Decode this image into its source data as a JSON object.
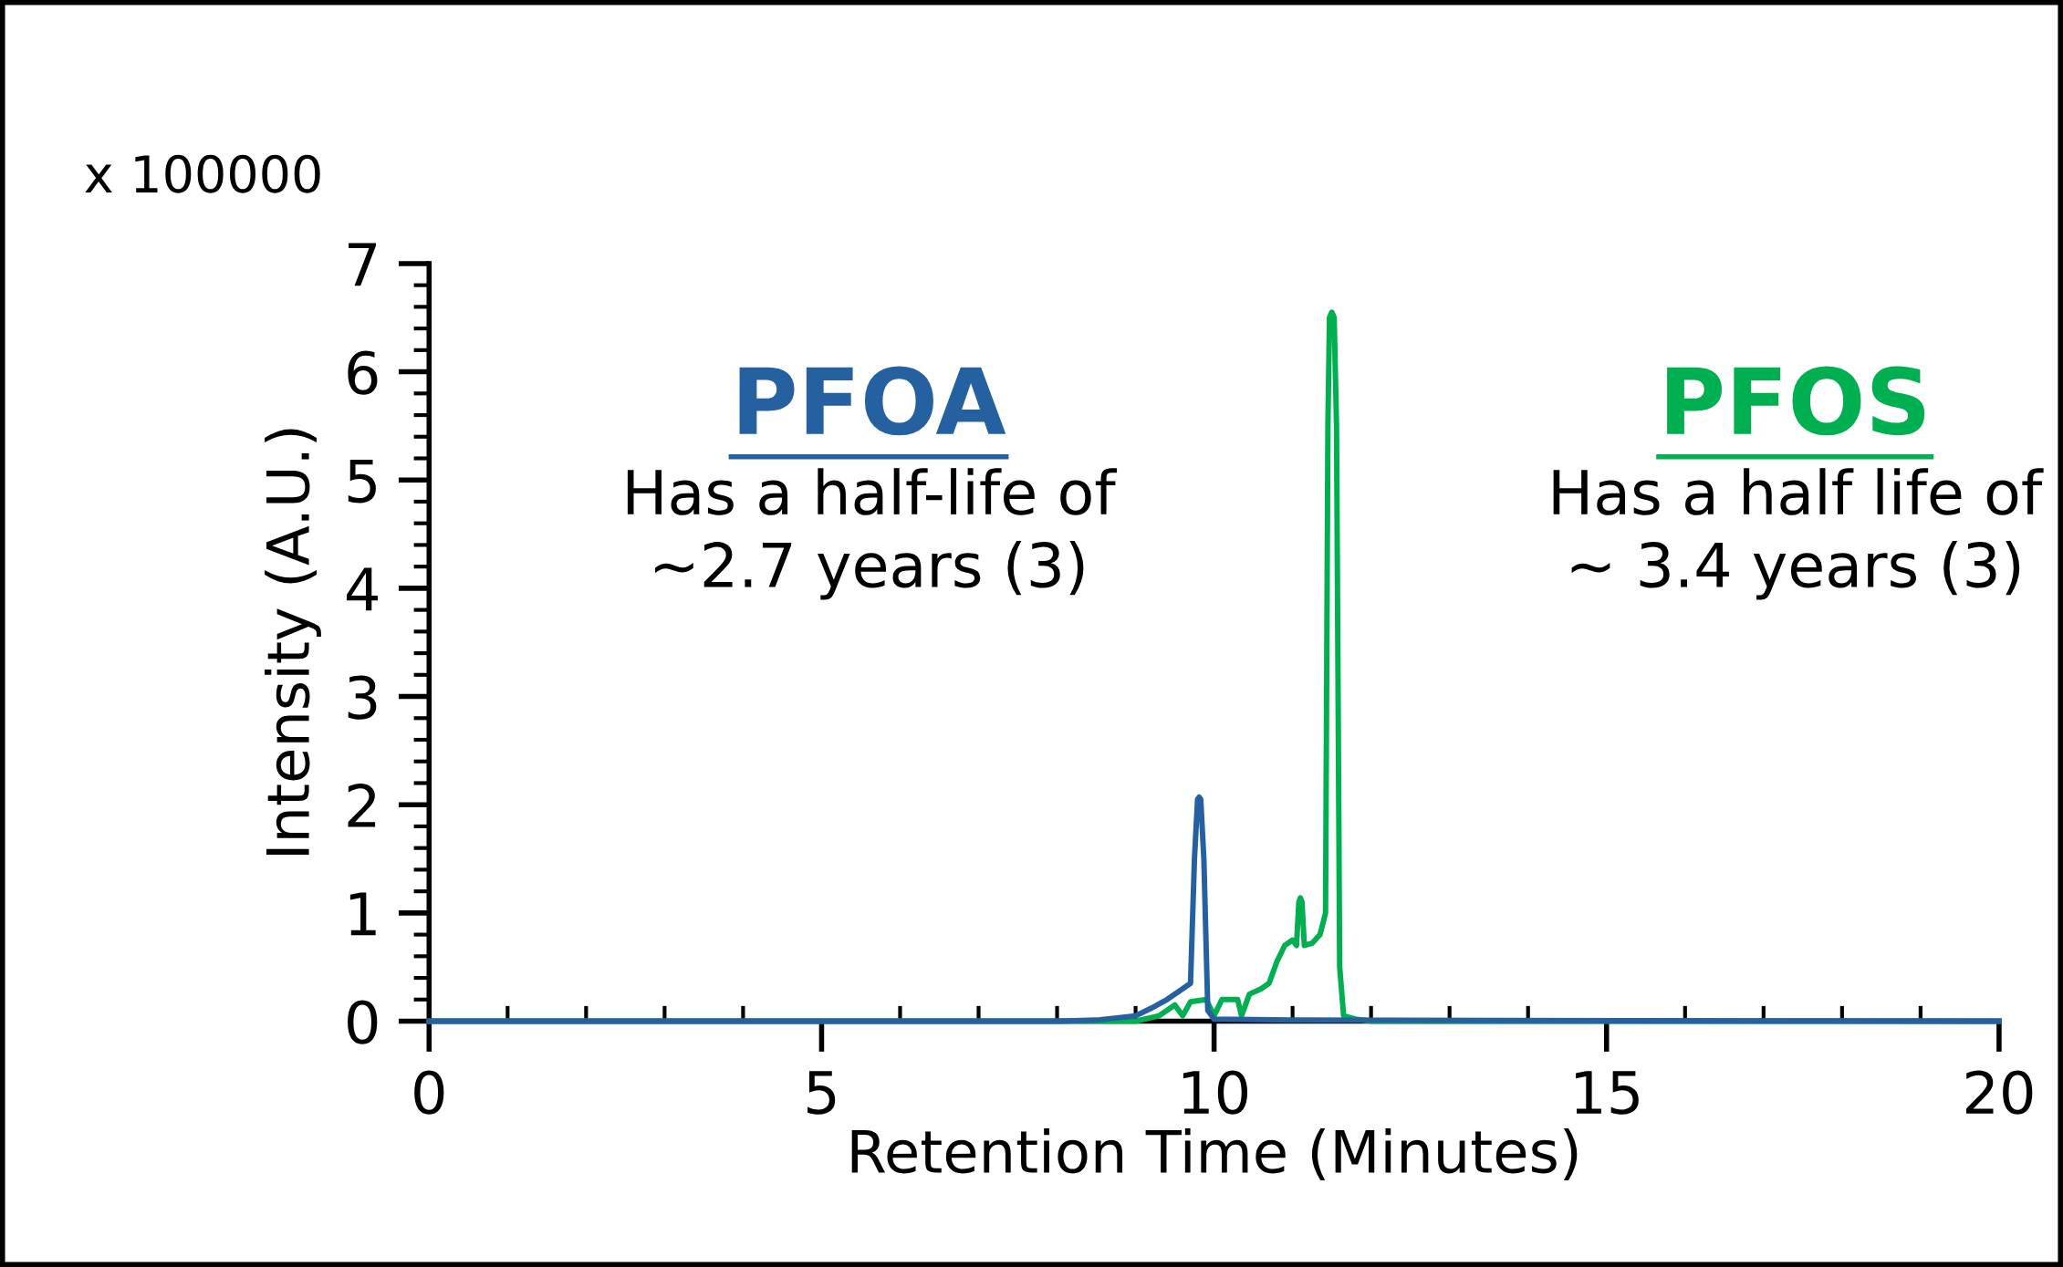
{
  "chart_data": {
    "type": "line",
    "xlabel": "Retention Time (Minutes)",
    "ylabel": "Intensity (A.U.)",
    "xlim": [
      0,
      20
    ],
    "xticks": [
      0,
      5,
      10,
      15,
      20
    ],
    "ylim": [
      0,
      7
    ],
    "yticks": [
      0,
      1,
      2,
      3,
      4,
      5,
      6,
      7
    ],
    "grid": false,
    "legend": false,
    "annotations": [
      "x 100000",
      "Has a half-life of\n~2.7 years (3)",
      "Has a half life of\n~ 3.4 years (3)"
    ],
    "series": [
      {
        "name": "PFOS",
        "color": "#00b050",
        "x": [
          0,
          9.0,
          9.3,
          9.5,
          9.6,
          9.7,
          9.9,
          10.0,
          10.1,
          10.3,
          10.35,
          10.45,
          10.6,
          10.7,
          10.8,
          10.9,
          11.0,
          11.05,
          11.08,
          11.1,
          11.12,
          11.15,
          11.25,
          11.35,
          11.42,
          11.45,
          11.47,
          11.5,
          11.53,
          11.56,
          11.6,
          11.65,
          11.8,
          12,
          20
        ],
        "values": [
          0,
          0,
          0.05,
          0.15,
          0.05,
          0.18,
          0.2,
          0.05,
          0.2,
          0.2,
          0.05,
          0.25,
          0.3,
          0.35,
          0.55,
          0.7,
          0.75,
          0.7,
          1.1,
          1.14,
          1.1,
          0.7,
          0.72,
          0.8,
          1.0,
          5.5,
          6.5,
          6.55,
          6.5,
          5.5,
          0.5,
          0.05,
          0.02,
          0,
          0
        ]
      },
      {
        "name": "PFOA",
        "color": "#2560a0",
        "x": [
          0,
          8,
          8.5,
          9.0,
          9.2,
          9.4,
          9.6,
          9.7,
          9.75,
          9.79,
          9.81,
          9.83,
          9.87,
          9.92,
          10.0,
          11,
          20
        ],
        "values": [
          0,
          0,
          0.01,
          0.05,
          0.12,
          0.2,
          0.3,
          0.35,
          1.5,
          2.05,
          2.07,
          2.05,
          1.5,
          0.1,
          0.02,
          0.01,
          0
        ]
      }
    ]
  }
}
